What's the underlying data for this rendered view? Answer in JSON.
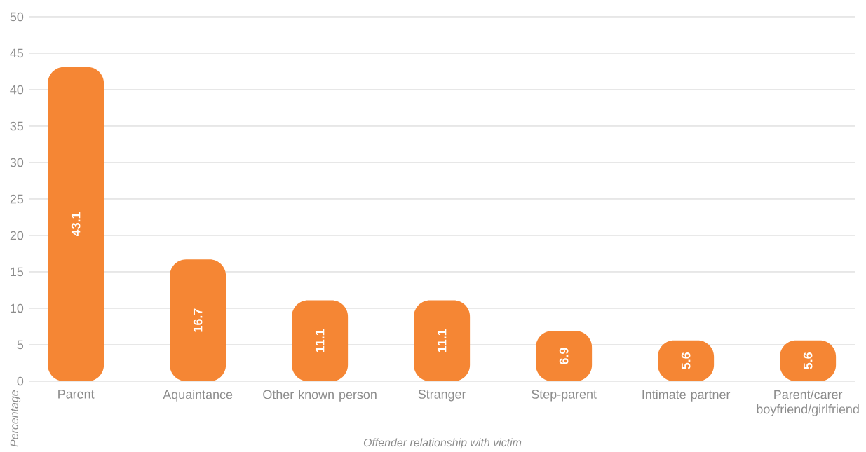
{
  "chart_data": {
    "type": "bar",
    "xlabel": "Offender relationship with victim",
    "ylabel": "Percentage",
    "categories": [
      "Parent",
      "Aquaintance",
      "Other known person",
      "Stranger",
      "Step-parent",
      "Intimate partner",
      "Parent/carer boyfriend/girlfriend"
    ],
    "values": [
      43.1,
      16.7,
      11.1,
      11.1,
      6.9,
      5.6,
      5.6
    ],
    "color": "#f58634",
    "ylim": [
      0,
      50
    ],
    "yticks": [
      0,
      5,
      10,
      15,
      20,
      25,
      30,
      35,
      40,
      45,
      50
    ],
    "grid": "y",
    "data_labels": true
  }
}
